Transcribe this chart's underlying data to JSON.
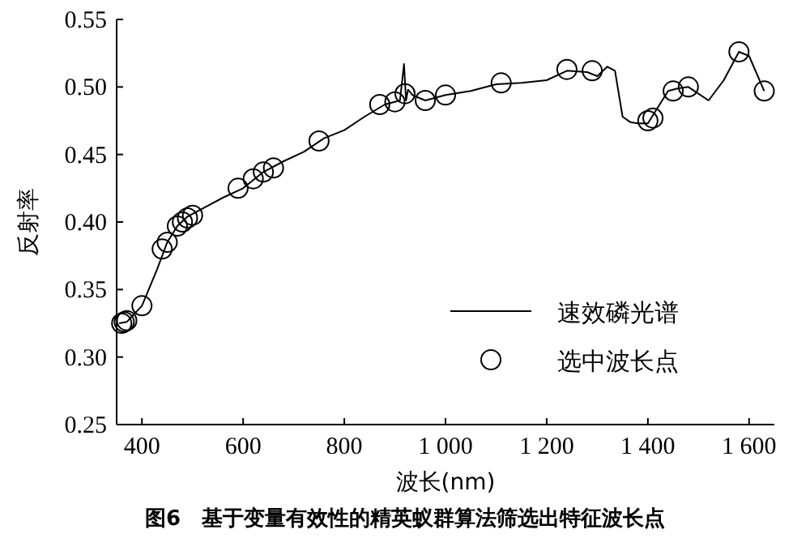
{
  "chart_data": {
    "type": "line",
    "title": "图6　基于变量有效性的精英蚁群算法筛选出特征波长点",
    "xlabel": "波长(nm)",
    "ylabel": "反射率",
    "xlim": [
      350,
      1650
    ],
    "xticks": [
      400,
      600,
      800,
      {
        "value": 1000,
        "label": "1 000"
      },
      {
        "value": 1200,
        "label": "1 200"
      },
      {
        "value": 1400,
        "label": "1 400"
      },
      {
        "value": 1600,
        "label": "1 600"
      }
    ],
    "ylim": [
      0.25,
      0.55
    ],
    "yticks": [
      {
        "value": 0.25,
        "label": "0.25"
      },
      {
        "value": 0.3,
        "label": "0.30"
      },
      {
        "value": 0.35,
        "label": "0.35"
      },
      {
        "value": 0.4,
        "label": "0.40"
      },
      {
        "value": 0.45,
        "label": "0.45"
      },
      {
        "value": 0.5,
        "label": "0.50"
      },
      {
        "value": 0.55,
        "label": "0.55"
      }
    ],
    "grid": false,
    "legend": "bottom right",
    "series": [
      {
        "name": "速效磷光谱",
        "type": "line",
        "color": "#000000",
        "marker": "none",
        "line_style": "solid",
        "x": [
          355,
          370,
          400,
          430,
          450,
          470,
          490,
          520,
          560,
          600,
          640,
          680,
          720,
          760,
          800,
          840,
          880,
          910,
          918,
          922,
          926,
          935,
          960,
          1000,
          1050,
          1100,
          1150,
          1200,
          1240,
          1280,
          1300,
          1320,
          1335,
          1350,
          1365,
          1380,
          1400,
          1420,
          1440,
          1460,
          1480,
          1500,
          1520,
          1550,
          1580,
          1600,
          1630
        ],
        "values": [
          0.325,
          0.326,
          0.338,
          0.365,
          0.385,
          0.397,
          0.404,
          0.41,
          0.418,
          0.425,
          0.437,
          0.445,
          0.452,
          0.462,
          0.468,
          0.478,
          0.487,
          0.49,
          0.517,
          0.49,
          0.498,
          0.494,
          0.49,
          0.494,
          0.497,
          0.502,
          0.503,
          0.505,
          0.512,
          0.511,
          0.508,
          0.515,
          0.512,
          0.478,
          0.474,
          0.473,
          0.473,
          0.485,
          0.497,
          0.499,
          0.5,
          0.495,
          0.49,
          0.505,
          0.526,
          0.523,
          0.497
        ]
      },
      {
        "name": "选中波长点",
        "type": "scatter",
        "color": "#000000",
        "marker": "circle",
        "x": [
          360,
          365,
          370,
          400,
          440,
          450,
          470,
          480,
          490,
          500,
          590,
          620,
          640,
          660,
          750,
          870,
          900,
          920,
          960,
          1000,
          1110,
          1240,
          1290,
          1400,
          1410,
          1450,
          1480,
          1580,
          1630
        ],
        "values": [
          0.325,
          0.326,
          0.327,
          0.338,
          0.38,
          0.385,
          0.397,
          0.4,
          0.403,
          0.405,
          0.425,
          0.432,
          0.437,
          0.44,
          0.46,
          0.487,
          0.489,
          0.495,
          0.49,
          0.494,
          0.503,
          0.513,
          0.512,
          0.475,
          0.477,
          0.497,
          0.5,
          0.526,
          0.497
        ]
      }
    ]
  }
}
